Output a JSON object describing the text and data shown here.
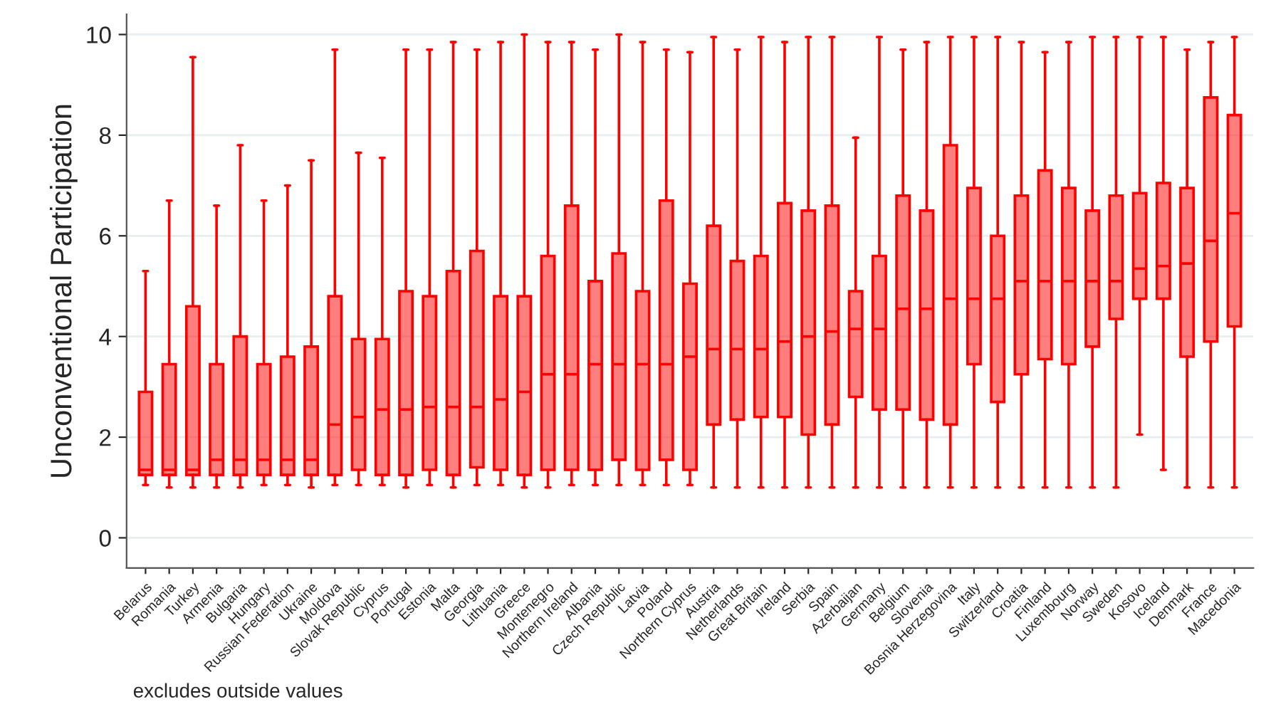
{
  "chart_data": {
    "type": "box",
    "ylabel": "Unconventional Participation",
    "annotations": [
      "excludes outside values"
    ],
    "categories": [
      "Belarus",
      "Romania",
      "Turkey",
      "Armenia",
      "Bulgaria",
      "Hungary",
      "Russian Federation",
      "Ukraine",
      "Moldova",
      "Slovak Republic",
      "Cyprus",
      "Portugal",
      "Estonia",
      "Malta",
      "Georgia",
      "Lithuania",
      "Greece",
      "Montenegro",
      "Northern Ireland",
      "Albania",
      "Czech Republic",
      "Latvia",
      "Poland",
      "Northern Cyprus",
      "Austria",
      "Netherlands",
      "Great Britain",
      "Ireland",
      "Serbia",
      "Spain",
      "Azerbaijan",
      "Germany",
      "Belgium",
      "Slovenia",
      "Bosnia Herzegovina",
      "Italy",
      "Switzerland",
      "Croatia",
      "Finland",
      "Luxembourg",
      "Norway",
      "Sweden",
      "Kosovo",
      "Iceland",
      "Denmark",
      "France",
      "Macedonia"
    ],
    "ylim": [
      -0.6,
      10.4
    ],
    "yticks": [
      0,
      2,
      4,
      6,
      8,
      10
    ],
    "grid": "y",
    "series": [
      {
        "color": "#ff0000",
        "boxes": [
          {
            "low": 1.05,
            "q1": 1.25,
            "median": 1.35,
            "q3": 2.9,
            "high": 5.3
          },
          {
            "low": 1.0,
            "q1": 1.25,
            "median": 1.35,
            "q3": 3.45,
            "high": 6.7
          },
          {
            "low": 1.0,
            "q1": 1.25,
            "median": 1.35,
            "q3": 4.6,
            "high": 9.55
          },
          {
            "low": 1.0,
            "q1": 1.25,
            "median": 1.55,
            "q3": 3.45,
            "high": 6.6
          },
          {
            "low": 1.0,
            "q1": 1.25,
            "median": 1.55,
            "q3": 4.0,
            "high": 7.8
          },
          {
            "low": 1.05,
            "q1": 1.25,
            "median": 1.55,
            "q3": 3.45,
            "high": 6.7
          },
          {
            "low": 1.05,
            "q1": 1.25,
            "median": 1.55,
            "q3": 3.6,
            "high": 7.0
          },
          {
            "low": 1.0,
            "q1": 1.25,
            "median": 1.55,
            "q3": 3.8,
            "high": 7.5
          },
          {
            "low": 1.05,
            "q1": 1.25,
            "median": 2.25,
            "q3": 4.8,
            "high": 9.7
          },
          {
            "low": 1.05,
            "q1": 1.35,
            "median": 2.4,
            "q3": 3.95,
            "high": 7.65
          },
          {
            "low": 1.05,
            "q1": 1.25,
            "median": 2.55,
            "q3": 3.95,
            "high": 7.55
          },
          {
            "low": 1.0,
            "q1": 1.25,
            "median": 2.55,
            "q3": 4.9,
            "high": 9.7
          },
          {
            "low": 1.05,
            "q1": 1.35,
            "median": 2.6,
            "q3": 4.8,
            "high": 9.7
          },
          {
            "low": 1.0,
            "q1": 1.25,
            "median": 2.6,
            "q3": 5.3,
            "high": 9.85
          },
          {
            "low": 1.05,
            "q1": 1.4,
            "median": 2.6,
            "q3": 5.7,
            "high": 9.7
          },
          {
            "low": 1.05,
            "q1": 1.35,
            "median": 2.75,
            "q3": 4.8,
            "high": 9.85
          },
          {
            "low": 1.0,
            "q1": 1.25,
            "median": 2.9,
            "q3": 4.8,
            "high": 10.0
          },
          {
            "low": 1.0,
            "q1": 1.35,
            "median": 3.25,
            "q3": 5.6,
            "high": 9.85
          },
          {
            "low": 1.05,
            "q1": 1.35,
            "median": 3.25,
            "q3": 6.6,
            "high": 9.85
          },
          {
            "low": 1.05,
            "q1": 1.35,
            "median": 3.45,
            "q3": 5.1,
            "high": 9.7
          },
          {
            "low": 1.05,
            "q1": 1.55,
            "median": 3.45,
            "q3": 5.65,
            "high": 10.0
          },
          {
            "low": 1.05,
            "q1": 1.35,
            "median": 3.45,
            "q3": 4.9,
            "high": 9.85
          },
          {
            "low": 1.05,
            "q1": 1.55,
            "median": 3.45,
            "q3": 6.7,
            "high": 9.7
          },
          {
            "low": 1.05,
            "q1": 1.35,
            "median": 3.6,
            "q3": 5.05,
            "high": 9.65
          },
          {
            "low": 1.0,
            "q1": 2.25,
            "median": 3.75,
            "q3": 6.2,
            "high": 9.95
          },
          {
            "low": 1.0,
            "q1": 2.35,
            "median": 3.75,
            "q3": 5.5,
            "high": 9.7
          },
          {
            "low": 1.0,
            "q1": 2.4,
            "median": 3.75,
            "q3": 5.6,
            "high": 9.95
          },
          {
            "low": 1.0,
            "q1": 2.4,
            "median": 3.9,
            "q3": 6.65,
            "high": 9.85
          },
          {
            "low": 1.0,
            "q1": 2.05,
            "median": 4.0,
            "q3": 6.5,
            "high": 9.95
          },
          {
            "low": 1.0,
            "q1": 2.25,
            "median": 4.1,
            "q3": 6.6,
            "high": 9.95
          },
          {
            "low": 1.0,
            "q1": 2.8,
            "median": 4.15,
            "q3": 4.9,
            "high": 7.95
          },
          {
            "low": 1.0,
            "q1": 2.55,
            "median": 4.15,
            "q3": 5.6,
            "high": 9.95
          },
          {
            "low": 1.0,
            "q1": 2.55,
            "median": 4.55,
            "q3": 6.8,
            "high": 9.7
          },
          {
            "low": 1.0,
            "q1": 2.35,
            "median": 4.55,
            "q3": 6.5,
            "high": 9.85
          },
          {
            "low": 1.0,
            "q1": 2.25,
            "median": 4.75,
            "q3": 7.8,
            "high": 9.95
          },
          {
            "low": 1.0,
            "q1": 3.45,
            "median": 4.75,
            "q3": 6.95,
            "high": 9.95
          },
          {
            "low": 1.0,
            "q1": 2.7,
            "median": 4.75,
            "q3": 6.0,
            "high": 9.95
          },
          {
            "low": 1.0,
            "q1": 3.25,
            "median": 5.1,
            "q3": 6.8,
            "high": 9.85
          },
          {
            "low": 1.0,
            "q1": 3.55,
            "median": 5.1,
            "q3": 7.3,
            "high": 9.65
          },
          {
            "low": 1.0,
            "q1": 3.45,
            "median": 5.1,
            "q3": 6.95,
            "high": 9.85
          },
          {
            "low": 1.0,
            "q1": 3.8,
            "median": 5.1,
            "q3": 6.5,
            "high": 9.95
          },
          {
            "low": 1.0,
            "q1": 4.35,
            "median": 5.1,
            "q3": 6.8,
            "high": 9.95
          },
          {
            "low": 2.05,
            "q1": 4.75,
            "median": 5.35,
            "q3": 6.85,
            "high": 9.95
          },
          {
            "low": 1.35,
            "q1": 4.75,
            "median": 5.4,
            "q3": 7.05,
            "high": 9.95
          },
          {
            "low": 1.0,
            "q1": 3.6,
            "median": 5.45,
            "q3": 6.95,
            "high": 9.7
          },
          {
            "low": 1.0,
            "q1": 3.9,
            "median": 5.9,
            "q3": 8.75,
            "high": 9.85
          },
          {
            "low": 1.0,
            "q1": 4.2,
            "median": 6.45,
            "q3": 8.4,
            "high": 9.95
          }
        ]
      }
    ]
  }
}
